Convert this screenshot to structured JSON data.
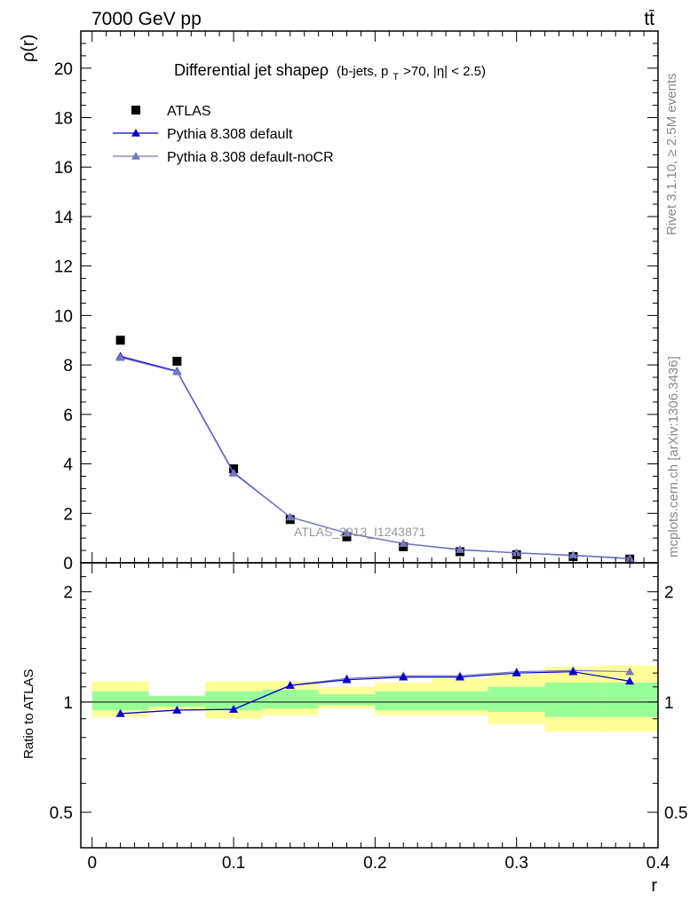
{
  "header": {
    "energy_label": "7000 GeV pp",
    "process_label": "tt̄",
    "side_rivet": "Rivet 3.1.10, ≥ 2.5M events",
    "side_mcplots": "mcplots.cern.ch [arXiv:1306.3436]"
  },
  "chart_data": [
    {
      "type": "scatter",
      "title_main": "Differential jet shapeρ",
      "title_sub": "(b-jets, p",
      "title_sub_index": "T",
      "title_sub_tail": ">70, |η| < 2.5)",
      "ylabel": "ρ(r)",
      "xlabel": "r",
      "watermark": "ATLAS_2013_I1243871",
      "xlim": [
        -0.008,
        0.4
      ],
      "ylim": [
        0,
        21.5
      ],
      "yticks": [
        0,
        2,
        4,
        6,
        8,
        10,
        12,
        14,
        16,
        18,
        20
      ],
      "xticks": [
        0,
        0.1,
        0.2,
        0.3,
        0.4
      ],
      "xtick_labels": [
        "0",
        "0.1",
        "0.2",
        "0.3",
        "0.4"
      ],
      "x": [
        0.02,
        0.06,
        0.1,
        0.14,
        0.18,
        0.22,
        0.26,
        0.3,
        0.34,
        0.38
      ],
      "series": [
        {
          "name": "ATLAS",
          "color": "#000000",
          "marker": "square",
          "values": [
            9.0,
            8.15,
            3.8,
            1.75,
            1.05,
            0.65,
            0.45,
            0.33,
            0.25,
            0.15
          ]
        },
        {
          "name": "Pythia 8.308 default",
          "color": "#0000cc",
          "marker": "triangle",
          "values": [
            8.35,
            7.75,
            3.65,
            1.85,
            1.2,
            0.78,
            0.53,
            0.4,
            0.3,
            0.17
          ]
        },
        {
          "name": "Pythia 8.308 default-noCR",
          "color": "#7777bb",
          "marker": "triangle",
          "values": [
            8.3,
            7.72,
            3.62,
            1.85,
            1.2,
            0.78,
            0.54,
            0.4,
            0.31,
            0.18
          ]
        }
      ],
      "legend": "top-left"
    },
    {
      "type": "line",
      "ylabel": "Ratio to ATLAS",
      "xlabel": "r",
      "scale": "log",
      "ylim": [
        0.4,
        2.4
      ],
      "yticks": [
        0.5,
        1,
        2
      ],
      "ytick_labels": [
        "0.5",
        "1",
        "2"
      ],
      "x": [
        0.02,
        0.06,
        0.1,
        0.14,
        0.18,
        0.22,
        0.26,
        0.3,
        0.34,
        0.38
      ],
      "band_edges": [
        0.0,
        0.04,
        0.08,
        0.12,
        0.16,
        0.2,
        0.24,
        0.28,
        0.32,
        0.36,
        0.4
      ],
      "band_green": [
        [
          0.95,
          1.07
        ],
        [
          0.97,
          1.04
        ],
        [
          0.95,
          1.07
        ],
        [
          0.96,
          1.08
        ],
        [
          0.98,
          1.05
        ],
        [
          0.95,
          1.07
        ],
        [
          0.95,
          1.07
        ],
        [
          0.94,
          1.1
        ],
        [
          0.91,
          1.13
        ],
        [
          0.91,
          1.13
        ]
      ],
      "band_yellow": [
        [
          0.91,
          1.14
        ],
        [
          0.95,
          1.04
        ],
        [
          0.9,
          1.14
        ],
        [
          0.92,
          1.14
        ],
        [
          0.96,
          1.1
        ],
        [
          0.92,
          1.13
        ],
        [
          0.92,
          1.16
        ],
        [
          0.87,
          1.19
        ],
        [
          0.83,
          1.25
        ],
        [
          0.83,
          1.26
        ]
      ],
      "band_colors": {
        "green": "#99ff99",
        "yellow": "#ffff99"
      },
      "series": [
        {
          "name": "Pythia 8.308 default",
          "color": "#0000cc",
          "marker": "triangle",
          "values": [
            0.93,
            0.95,
            0.955,
            1.11,
            1.15,
            1.17,
            1.17,
            1.2,
            1.21,
            1.14
          ]
        },
        {
          "name": "Pythia 8.308 default-noCR",
          "color": "#7777bb",
          "marker": "triangle",
          "values": [
            0.93,
            0.95,
            0.955,
            1.11,
            1.16,
            1.18,
            1.18,
            1.21,
            1.22,
            1.21
          ]
        }
      ]
    }
  ]
}
